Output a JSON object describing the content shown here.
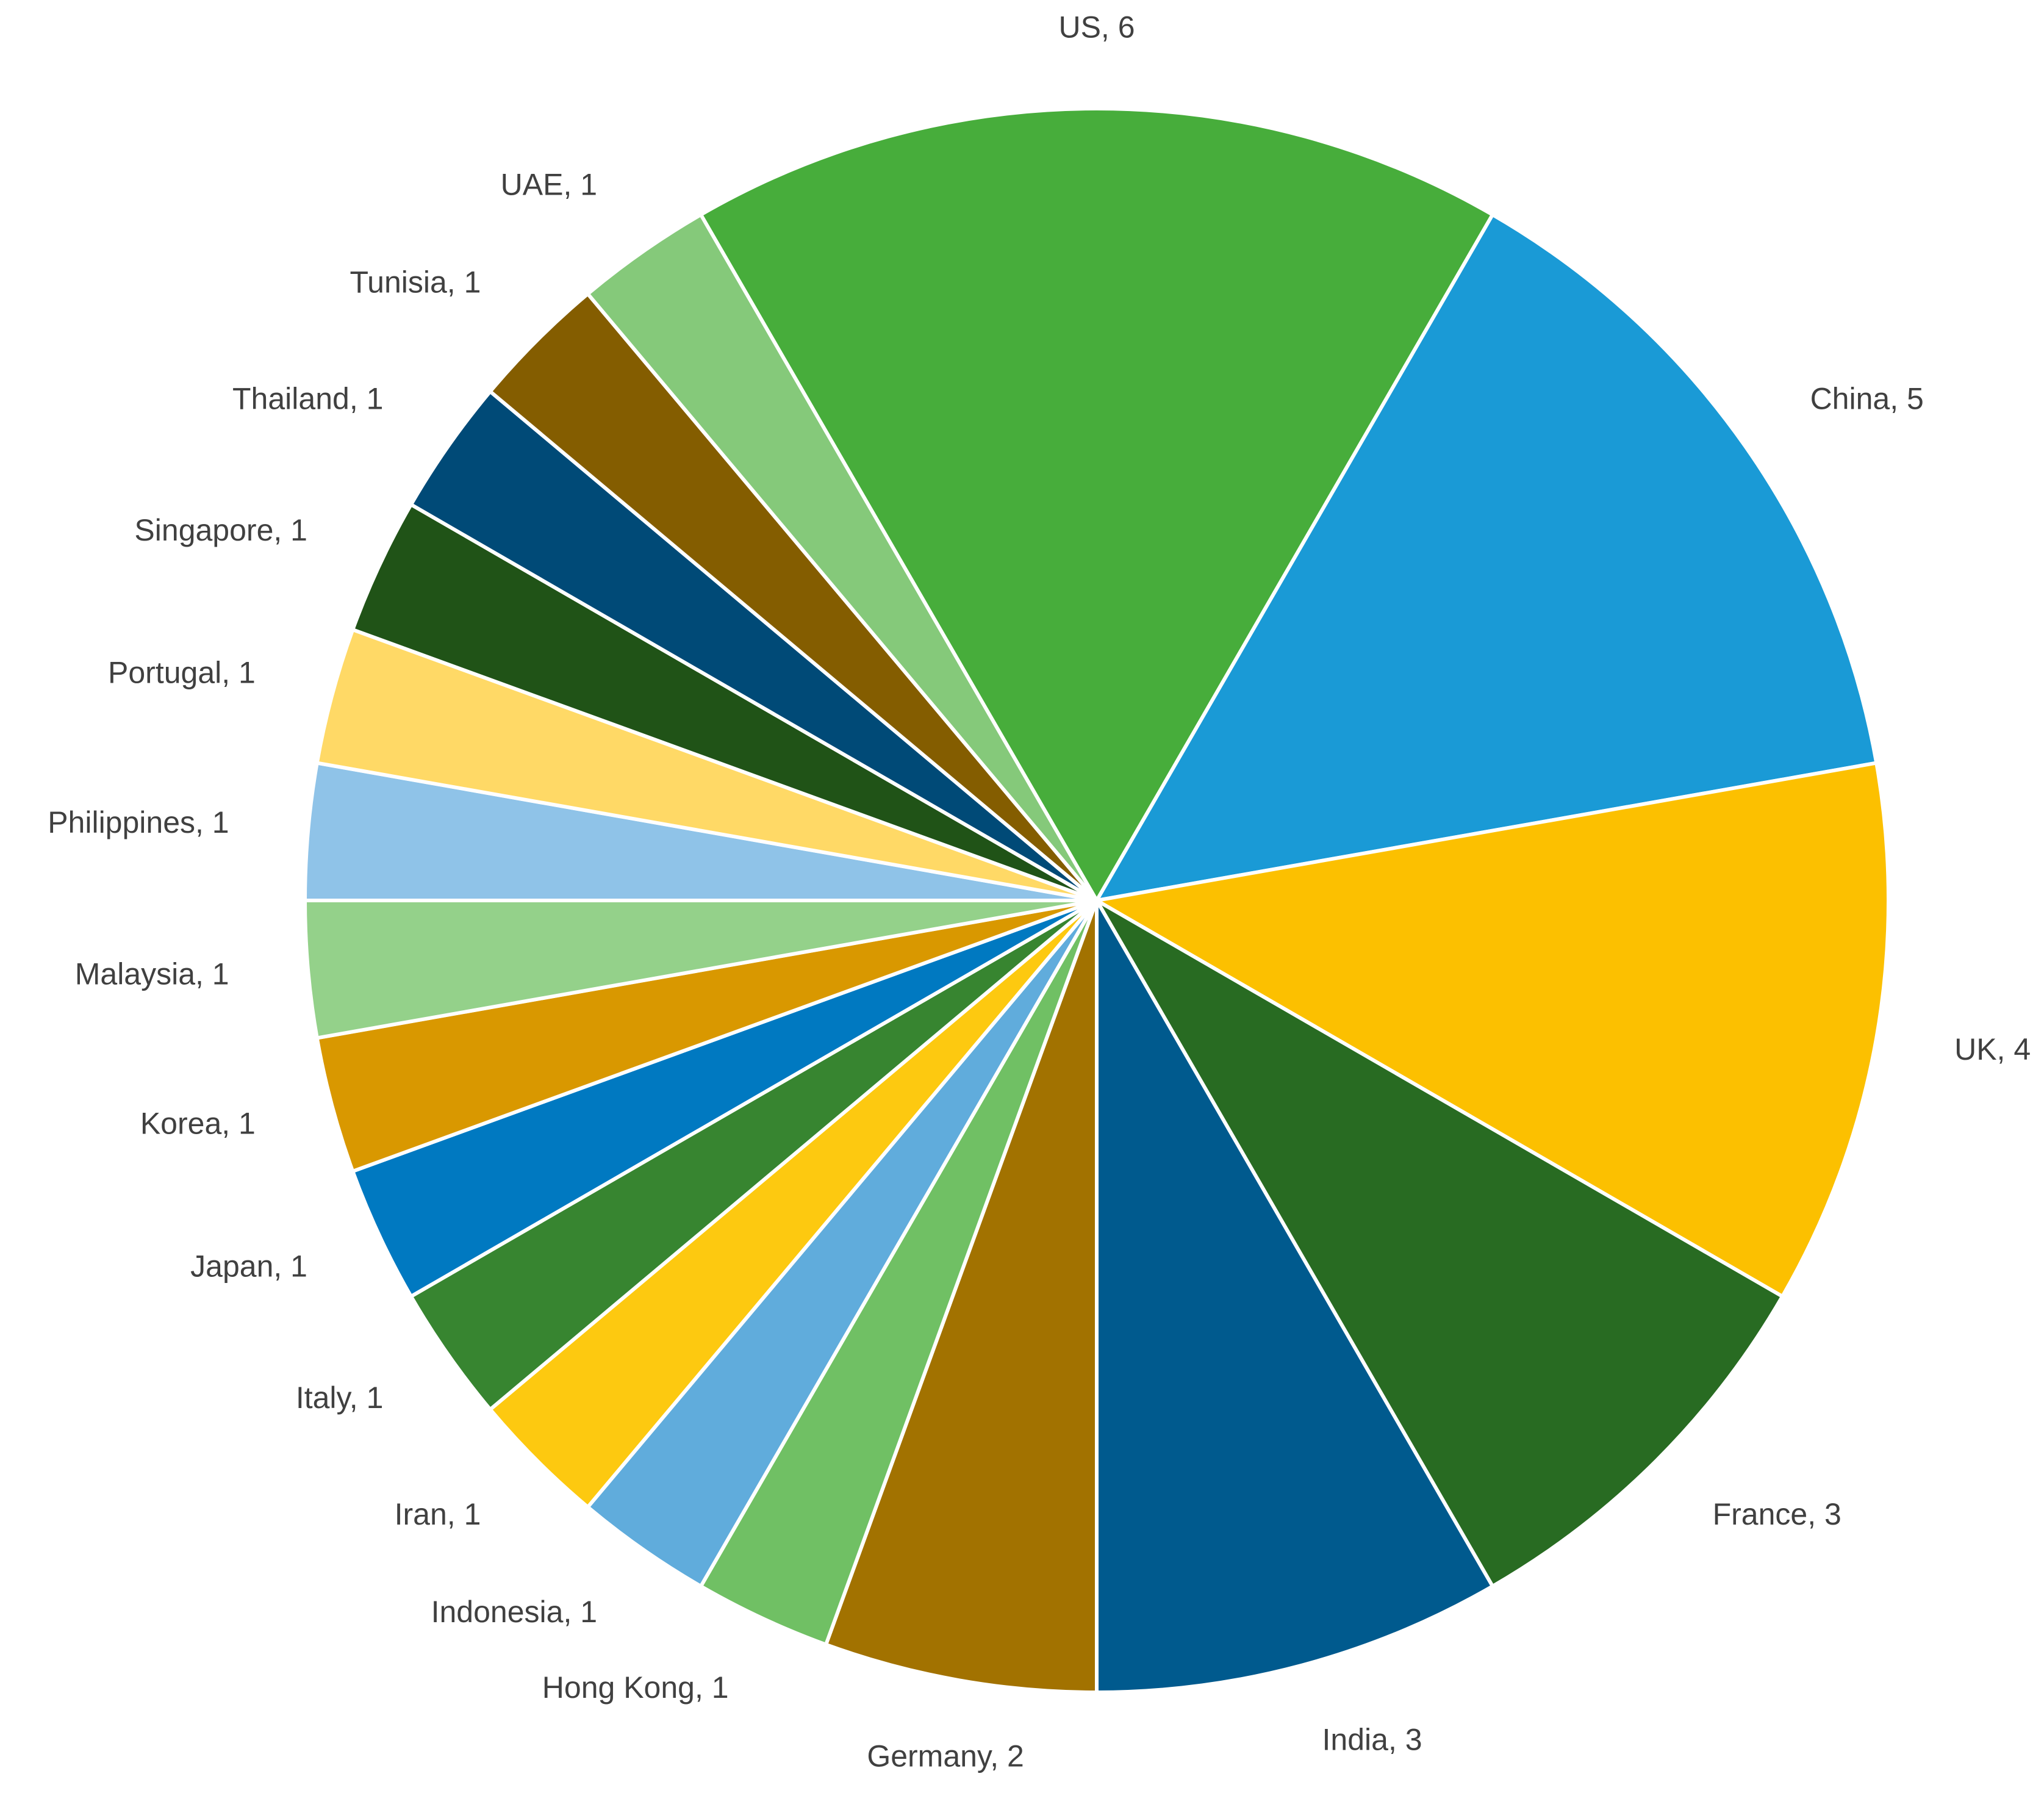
{
  "chart_data": {
    "type": "pie",
    "values": [
      6,
      5,
      4,
      3,
      3,
      2,
      1,
      1,
      1,
      1,
      1,
      1,
      1,
      1,
      1,
      1,
      1,
      1,
      1
    ],
    "value_labels": [
      "US, 6",
      "China, 5",
      "UK, 4",
      "France, 3",
      "India, 3",
      "Germany, 2",
      "Hong Kong, 1",
      "Indonesia, 1",
      "Iran, 1",
      "Italy, 1",
      "Japan, 1",
      "Korea, 1",
      "Malaysia, 1",
      "Philippines, 1",
      "Portugal, 1",
      "Singapore, 1",
      "Thailand, 1",
      "Tunisia, 1",
      "UAE, 1"
    ],
    "colors": [
      "#47ad3b",
      "#1a9ad6",
      "#fcc000",
      "#286b22",
      "#005a8e",
      "#a27200",
      "#70c064",
      "#60acdc",
      "#fdc910",
      "#378530",
      "#0079c1",
      "#d99800",
      "#94d18a",
      "#8fc3e8",
      "#ffd966",
      "#205317",
      "#004a77",
      "#845d00",
      "#85c97a"
    ]
  }
}
